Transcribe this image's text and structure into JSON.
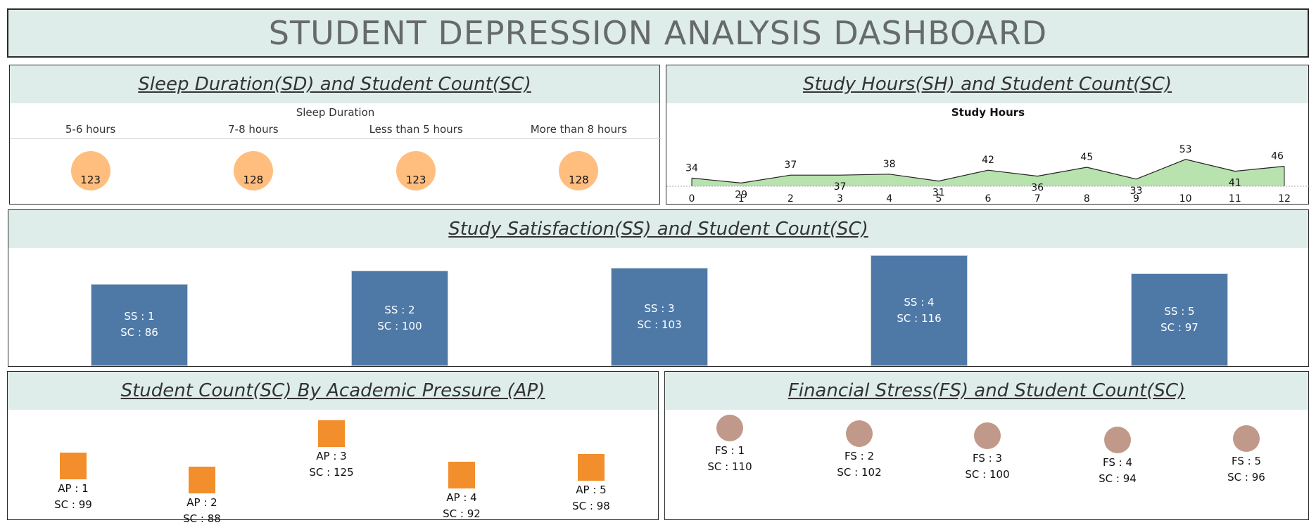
{
  "dashboard_title": "STUDENT DEPRESSION ANALYSIS DASHBOARD",
  "colors": {
    "title_band": "#deede9",
    "sleep_circle": "#ffbd7e",
    "study_area": "#b8e2ae",
    "ss_bar": "#4e79a7",
    "ap_square": "#f28e2b",
    "fs_circle": "#c1998a"
  },
  "chart_data": [
    {
      "type": "scatter",
      "title": "Sleep Duration(SD) and Student Count(SC)",
      "header": "Sleep Duration",
      "categories": [
        "5-6 hours",
        "7-8 hours",
        "Less than 5 hours",
        "More than 8 hours"
      ],
      "values": [
        123,
        128,
        123,
        128
      ],
      "mark": "circle"
    },
    {
      "type": "area",
      "title": "Study Hours(SH) and Student Count(SC)",
      "header": "Study Hours",
      "x": [
        0,
        1,
        2,
        3,
        4,
        5,
        6,
        7,
        8,
        9,
        10,
        11,
        12
      ],
      "values": [
        34,
        29,
        37,
        37,
        38,
        31,
        42,
        36,
        45,
        33,
        53,
        41,
        46
      ]
    },
    {
      "type": "bar",
      "title": "Study Satisfaction(SS) and Student Count(SC)",
      "categories": [
        1,
        2,
        3,
        4,
        5
      ],
      "values": [
        86,
        100,
        103,
        116,
        97
      ],
      "cat_prefix": "SS : ",
      "val_prefix": "SC : "
    },
    {
      "type": "scatter",
      "title": "Student Count(SC) By Academic Pressure (AP)",
      "categories": [
        1,
        2,
        3,
        4,
        5
      ],
      "values": [
        99,
        88,
        125,
        92,
        98
      ],
      "cat_prefix": "AP : ",
      "val_prefix": "SC : ",
      "mark": "square"
    },
    {
      "type": "scatter",
      "title": "Financial Stress(FS) and Student Count(SC)",
      "categories": [
        1,
        2,
        3,
        4,
        5
      ],
      "values": [
        110,
        102,
        100,
        94,
        96
      ],
      "cat_prefix": "FS : ",
      "val_prefix": "SC : ",
      "mark": "circle"
    }
  ]
}
